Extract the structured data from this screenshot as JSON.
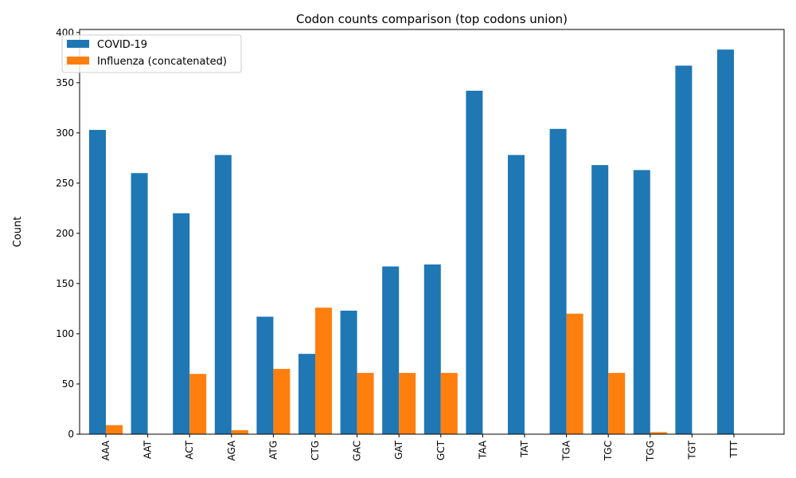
{
  "chart_data": {
    "type": "bar",
    "title": "Codon counts comparison (top codons union)",
    "xlabel": "",
    "ylabel": "Count",
    "ylim": [
      0,
      403
    ],
    "yticks": [
      0,
      50,
      100,
      150,
      200,
      250,
      300,
      350,
      400
    ],
    "categories": [
      "AAA",
      "AAT",
      "ACT",
      "AGA",
      "ATG",
      "CTG",
      "GAC",
      "GAT",
      "GCT",
      "TAA",
      "TAT",
      "TGA",
      "TGC",
      "TGG",
      "TGT",
      "TTT"
    ],
    "series": [
      {
        "name": "COVID-19",
        "color": "#1f77b4",
        "values": [
          303,
          260,
          220,
          278,
          117,
          80,
          123,
          167,
          169,
          342,
          278,
          304,
          268,
          263,
          367,
          383
        ]
      },
      {
        "name": "Influenza (concatenated)",
        "color": "#ff7f0e",
        "values": [
          9,
          0,
          60,
          4,
          65,
          126,
          61,
          61,
          61,
          0,
          0,
          120,
          61,
          2,
          0,
          0
        ]
      }
    ],
    "grid": false,
    "legend_position": "top-left"
  }
}
